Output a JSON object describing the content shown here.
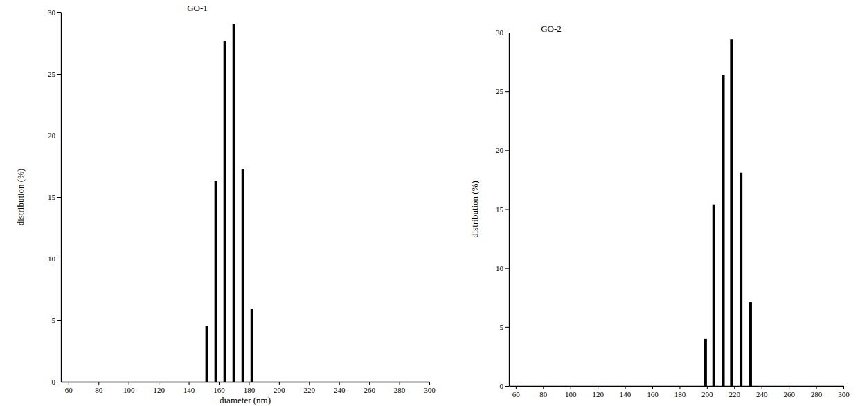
{
  "chart_data": [
    {
      "type": "bar",
      "title": "GO-1",
      "x_label": "diameter (nm)",
      "y_label": "distribution (%)",
      "x": [
        152,
        158,
        164,
        170,
        176,
        182
      ],
      "values": [
        4.5,
        16.3,
        27.7,
        29.1,
        17.3,
        5.9
      ],
      "color": "#000000",
      "xlim": [
        55,
        300
      ],
      "ylim": [
        0,
        30
      ],
      "xticks": [
        60,
        80,
        100,
        120,
        140,
        160,
        180,
        200,
        220,
        240,
        260,
        280,
        300
      ],
      "yticks": [
        0,
        5,
        10,
        15,
        20,
        25,
        30
      ]
    },
    {
      "type": "bar",
      "title": "GO-2",
      "y_label": "distribution (%)",
      "x": [
        199,
        205,
        212,
        218,
        225,
        232
      ],
      "values": [
        4,
        15.4,
        26.4,
        29.4,
        18.1,
        7.1
      ],
      "color": "#000000",
      "xlim": [
        55,
        300
      ],
      "ylim": [
        0,
        30
      ],
      "xticks": [
        60,
        80,
        100,
        120,
        140,
        160,
        180,
        200,
        220,
        240,
        260,
        280,
        300
      ],
      "yticks": [
        0,
        5,
        10,
        15,
        20,
        25,
        30
      ]
    }
  ]
}
